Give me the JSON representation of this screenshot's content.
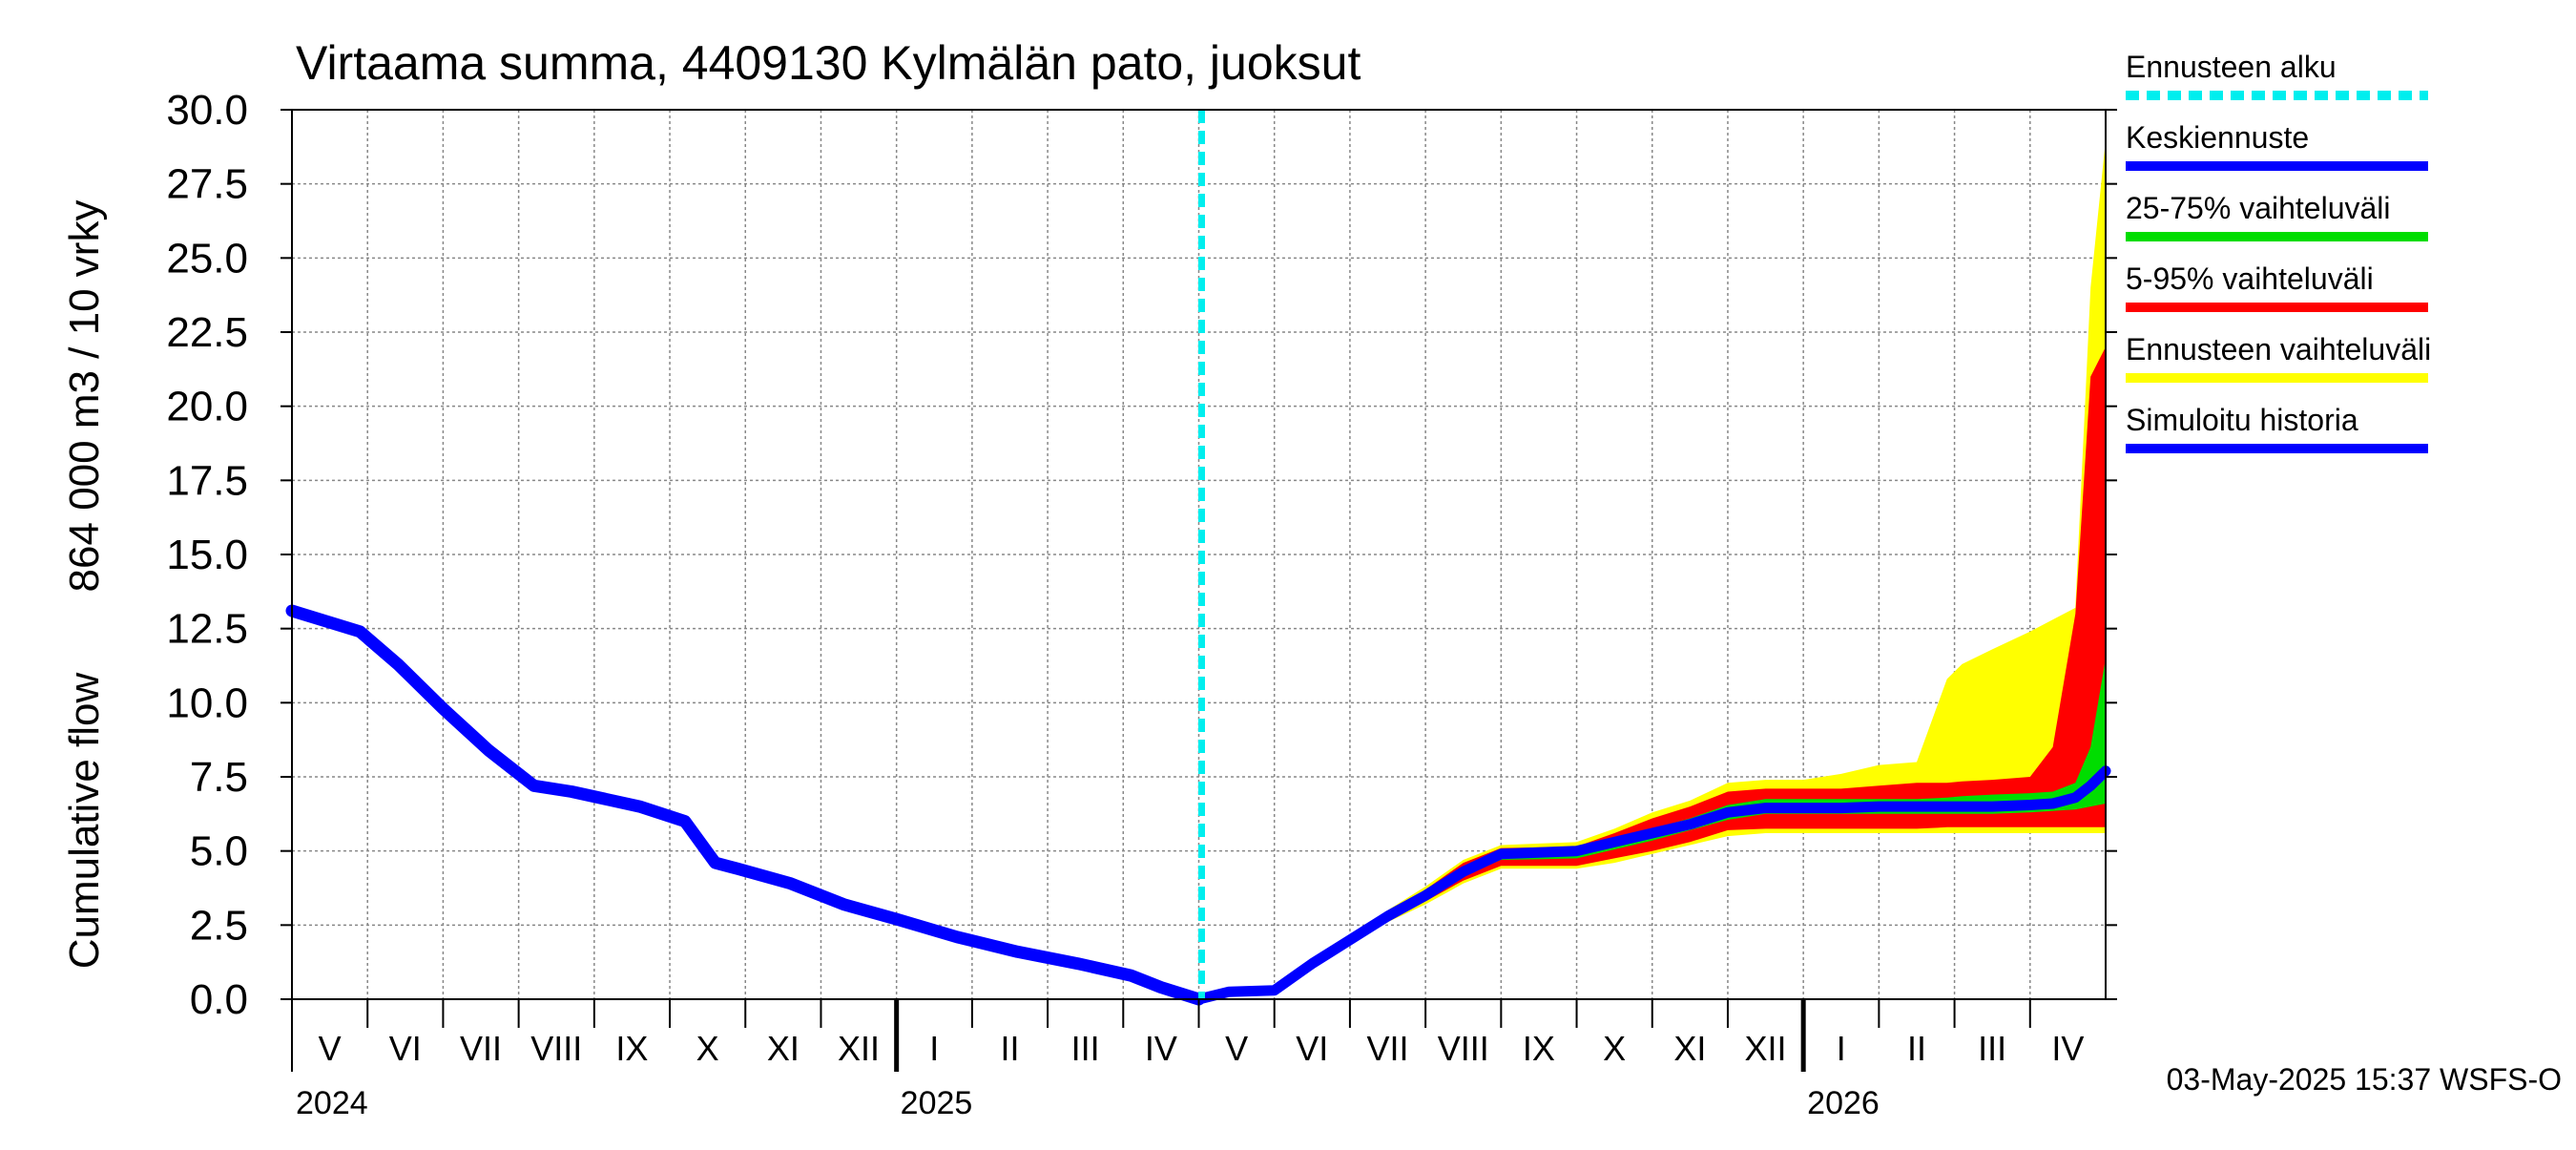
{
  "chart_data": {
    "type": "area",
    "title": "Virtaama summa, 4409130 Kylmälän pato, juoksut",
    "ylabel_top": "864 000 m3 / 10 vrky",
    "ylabel_bottom": "Cumulative flow",
    "ylim": [
      0,
      30
    ],
    "yticks": [
      "0.0",
      "2.5",
      "5.0",
      "7.5",
      "10.0",
      "12.5",
      "15.0",
      "17.5",
      "20.0",
      "22.5",
      "25.0",
      "27.5",
      "30.0"
    ],
    "grid": true,
    "month_labels": [
      "V",
      "VI",
      "VII",
      "VIII",
      "IX",
      "X",
      "XI",
      "XII",
      "I",
      "II",
      "III",
      "IV",
      "V",
      "VI",
      "VII",
      "VIII",
      "IX",
      "X",
      "XI",
      "XII",
      "I",
      "II",
      "III",
      "IV"
    ],
    "year_labels": [
      "2024",
      "2025",
      "2026"
    ],
    "forecast_start_month": 12,
    "timestamp": "03-May-2025 15:37 WSFS-O",
    "legend": [
      {
        "label": "Ennusteen alku",
        "color": "#00eeee",
        "dashed": true
      },
      {
        "label": "Keskiennuste",
        "color": "#0000ff"
      },
      {
        "label": "25-75% vaihteluväli",
        "color": "#00dd00"
      },
      {
        "label": "5-95% vaihteluväli",
        "color": "#ff0000"
      },
      {
        "label": "Ennusteen vaihteluväli",
        "color": "#ffff00"
      },
      {
        "label": "Simuloitu historia",
        "color": "#0000ff"
      }
    ],
    "history": {
      "x": [
        0,
        0.9,
        1.4,
        2.0,
        2.6,
        3.2,
        3.7,
        4.6,
        5.2,
        5.6,
        5.9,
        6.6,
        7.3,
        8.0,
        8.8,
        9.6,
        10.4,
        11.1,
        11.5,
        12.0
      ],
      "y": [
        13.1,
        12.4,
        11.3,
        9.8,
        8.4,
        7.2,
        7.0,
        6.5,
        6.0,
        4.6,
        4.4,
        3.9,
        3.2,
        2.7,
        2.1,
        1.6,
        1.2,
        0.8,
        0.4,
        0.0
      ]
    },
    "forecast_x": [
      12.0,
      12.4,
      13.0,
      13.5,
      14.0,
      14.5,
      15.0,
      15.5,
      16.0,
      16.5,
      17.0,
      17.5,
      18.0,
      18.5,
      19.0,
      19.5,
      20.0,
      20.5,
      21.0,
      21.5,
      21.9,
      22.1,
      22.5,
      23.0,
      23.3,
      23.6,
      23.8,
      24.0
    ],
    "median": [
      0.0,
      0.25,
      0.3,
      1.2,
      2.0,
      2.8,
      3.5,
      4.3,
      4.9,
      4.95,
      5.0,
      5.3,
      5.6,
      5.9,
      6.3,
      6.45,
      6.45,
      6.45,
      6.5,
      6.5,
      6.5,
      6.5,
      6.5,
      6.55,
      6.6,
      6.8,
      7.2,
      7.7
    ],
    "p25": [
      0.0,
      0.25,
      0.3,
      1.2,
      2.0,
      2.75,
      3.4,
      4.15,
      4.7,
      4.72,
      4.75,
      5.05,
      5.35,
      5.7,
      6.05,
      6.25,
      6.25,
      6.25,
      6.25,
      6.25,
      6.25,
      6.25,
      6.25,
      6.3,
      6.35,
      6.4,
      6.5,
      6.6
    ],
    "p75": [
      0.0,
      0.25,
      0.3,
      1.2,
      2.0,
      2.85,
      3.6,
      4.4,
      4.95,
      5.0,
      5.05,
      5.45,
      5.75,
      6.1,
      6.55,
      6.75,
      6.75,
      6.75,
      6.75,
      6.75,
      6.8,
      6.85,
      6.9,
      6.95,
      7.0,
      7.3,
      8.5,
      11.5
    ],
    "p5": [
      0.0,
      0.25,
      0.3,
      1.15,
      1.95,
      2.7,
      3.3,
      4.0,
      4.5,
      4.5,
      4.5,
      4.75,
      5.0,
      5.3,
      5.7,
      5.75,
      5.75,
      5.75,
      5.75,
      5.75,
      5.8,
      5.8,
      5.8,
      5.8,
      5.8,
      5.8,
      5.8,
      5.8
    ],
    "p95": [
      0.0,
      0.25,
      0.3,
      1.25,
      2.05,
      2.9,
      3.7,
      4.6,
      5.1,
      5.12,
      5.15,
      5.6,
      6.1,
      6.5,
      7.0,
      7.1,
      7.1,
      7.1,
      7.2,
      7.3,
      7.3,
      7.35,
      7.4,
      7.5,
      8.5,
      13.0,
      21.0,
      22.0
    ],
    "minimum": [
      0.0,
      0.25,
      0.3,
      1.1,
      1.9,
      2.6,
      3.2,
      3.9,
      4.4,
      4.4,
      4.4,
      4.6,
      4.9,
      5.2,
      5.5,
      5.6,
      5.6,
      5.6,
      5.6,
      5.6,
      5.6,
      5.6,
      5.6,
      5.6,
      5.6,
      5.6,
      5.6,
      5.6
    ],
    "maximum": [
      0.0,
      0.25,
      0.3,
      1.3,
      2.1,
      3.0,
      3.8,
      4.7,
      5.2,
      5.25,
      5.3,
      5.75,
      6.3,
      6.7,
      7.3,
      7.4,
      7.4,
      7.6,
      7.9,
      8.0,
      10.8,
      11.3,
      11.8,
      12.4,
      12.8,
      13.2,
      24.0,
      29.0
    ]
  }
}
